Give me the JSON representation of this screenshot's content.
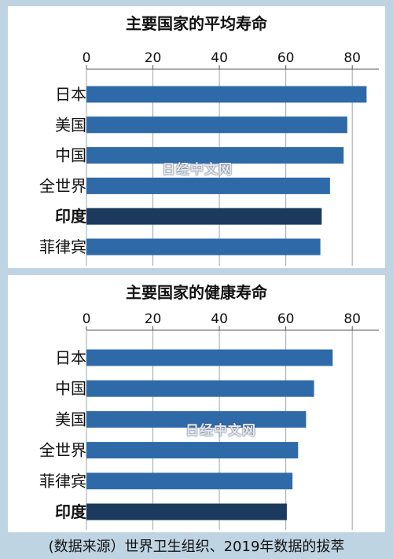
{
  "chart_data": [
    {
      "type": "bar",
      "orientation": "horizontal",
      "title": "主要国家的平均寿命",
      "categories": [
        "日本",
        "美国",
        "中国",
        "全世界",
        "印度",
        "菲律宾"
      ],
      "values": [
        84.3,
        78.5,
        77.4,
        73.3,
        70.8,
        70.4
      ],
      "highlight": "印度",
      "xticks": [
        0,
        20,
        40,
        60,
        80
      ],
      "xlim": [
        0,
        88
      ],
      "grid": true,
      "bar_color": "#2e6aa8",
      "highlight_color": "#1b3a5e"
    },
    {
      "type": "bar",
      "orientation": "horizontal",
      "title": "主要国家的健康寿命",
      "categories": [
        "日本",
        "中国",
        "美国",
        "全世界",
        "菲律宾",
        "印度"
      ],
      "values": [
        74.1,
        68.5,
        66.1,
        63.7,
        62.0,
        60.3
      ],
      "highlight": "印度",
      "xticks": [
        0,
        20,
        40,
        60,
        80
      ],
      "xlim": [
        0,
        88
      ],
      "grid": true,
      "bar_color": "#2e6aa8",
      "highlight_color": "#1b3a5e"
    }
  ],
  "watermark": "日经中文网",
  "source": "(数据来源）世界卫生组织、2019年数据的拔萃"
}
